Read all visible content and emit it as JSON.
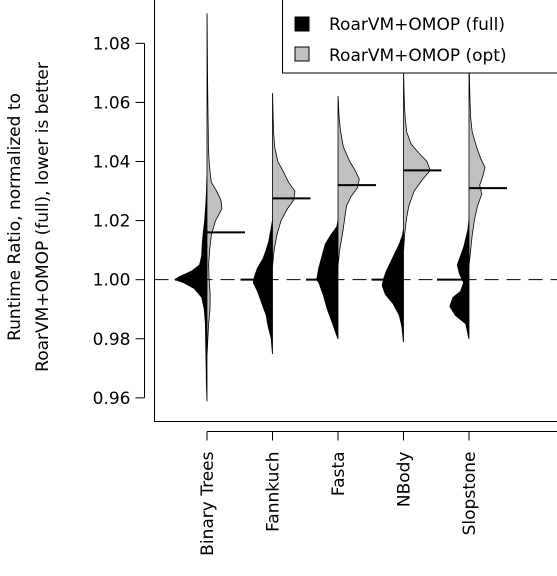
{
  "chart_data": {
    "type": "violin",
    "title": "",
    "ylabel_lines": [
      "Runtime Ratio, normalized to",
      "RoarVM+OMOP (full), lower is better"
    ],
    "xlabel": "",
    "ylim": [
      0.952,
      1.095
    ],
    "yticks": [
      0.96,
      0.98,
      1.0,
      1.02,
      1.04,
      1.06,
      1.08
    ],
    "ytick_labels": [
      "0.96",
      "0.98",
      "1.00",
      "1.02",
      "1.04",
      "1.06",
      "1.08"
    ],
    "reference_line": 1.0,
    "categories": [
      "Binary Trees",
      "Fannkuch",
      "Fasta",
      "NBody",
      "Slopstone"
    ],
    "series": [
      {
        "name": "RoarVM+OMOP (full)",
        "color": "#000000",
        "means": [
          1.0,
          1.0,
          1.0,
          1.0,
          1.0
        ],
        "densities": [
          [
            [
              0.959,
              0.1
            ],
            [
              0.965,
              0.6
            ],
            [
              0.972,
              0.9
            ],
            [
              0.978,
              1.2
            ],
            [
              0.985,
              1.5
            ],
            [
              0.99,
              2.6
            ],
            [
              0.994,
              5.0
            ],
            [
              0.997,
              12.0
            ],
            [
              0.999,
              22.0
            ],
            [
              1.0,
              30.0
            ],
            [
              1.001,
              26.0
            ],
            [
              1.003,
              14.0
            ],
            [
              1.005,
              7.0
            ],
            [
              1.008,
              5.0
            ],
            [
              1.012,
              4.5
            ],
            [
              1.016,
              3.5
            ],
            [
              1.02,
              2.2
            ],
            [
              1.025,
              1.2
            ],
            [
              1.03,
              0.5
            ],
            [
              1.035,
              0.1
            ]
          ],
          [
            [
              0.975,
              0.1
            ],
            [
              0.98,
              1.2
            ],
            [
              0.984,
              4.0
            ],
            [
              0.988,
              6.0
            ],
            [
              0.992,
              10.0
            ],
            [
              0.996,
              14.0
            ],
            [
              0.999,
              18.0
            ],
            [
              1.001,
              17.0
            ],
            [
              1.004,
              14.0
            ],
            [
              1.007,
              9.0
            ],
            [
              1.01,
              6.0
            ],
            [
              1.013,
              3.5
            ],
            [
              1.017,
              1.5
            ],
            [
              1.02,
              0.1
            ]
          ],
          [
            [
              0.98,
              0.1
            ],
            [
              0.985,
              5.0
            ],
            [
              0.99,
              10.0
            ],
            [
              0.995,
              14.0
            ],
            [
              0.999,
              18.0
            ],
            [
              1.0,
              20.0
            ],
            [
              1.004,
              18.0
            ],
            [
              1.008,
              15.0
            ],
            [
              1.012,
              12.0
            ],
            [
              1.015,
              7.0
            ],
            [
              1.018,
              1.0
            ],
            [
              1.02,
              0.1
            ]
          ],
          [
            [
              0.979,
              0.1
            ],
            [
              0.984,
              1.5
            ],
            [
              0.988,
              4.0
            ],
            [
              0.992,
              10.0
            ],
            [
              0.995,
              17.0
            ],
            [
              0.998,
              20.0
            ],
            [
              1.0,
              19.0
            ],
            [
              1.003,
              16.0
            ],
            [
              1.006,
              12.0
            ],
            [
              1.009,
              8.0
            ],
            [
              1.012,
              4.0
            ],
            [
              1.015,
              1.0
            ],
            [
              1.017,
              0.1
            ]
          ],
          [
            [
              0.98,
              0.1
            ],
            [
              0.985,
              3.0
            ],
            [
              0.988,
              13.0
            ],
            [
              0.991,
              18.0
            ],
            [
              0.994,
              15.0
            ],
            [
              0.996,
              8.0
            ],
            [
              0.999,
              5.0
            ],
            [
              1.002,
              9.0
            ],
            [
              1.005,
              11.0
            ],
            [
              1.008,
              8.0
            ],
            [
              1.011,
              5.0
            ],
            [
              1.014,
              3.0
            ],
            [
              1.017,
              1.0
            ],
            [
              1.02,
              0.1
            ]
          ]
        ]
      },
      {
        "name": "RoarVM+OMOP (opt)",
        "color": "#c0c0c0",
        "means": [
          1.016,
          1.0275,
          1.032,
          1.037,
          1.031
        ],
        "densities": [
          [
            [
              0.975,
              0.1
            ],
            [
              0.98,
              0.8
            ],
            [
              0.985,
              1.5
            ],
            [
              0.99,
              2.8
            ],
            [
              0.995,
              3.0
            ],
            [
              1.0,
              2.0
            ],
            [
              1.005,
              1.5
            ],
            [
              1.01,
              2.5
            ],
            [
              1.015,
              4.0
            ],
            [
              1.02,
              8.0
            ],
            [
              1.024,
              14.0
            ],
            [
              1.027,
              13.0
            ],
            [
              1.03,
              9.0
            ],
            [
              1.033,
              4.0
            ],
            [
              1.036,
              3.0
            ],
            [
              1.04,
              2.0
            ],
            [
              1.045,
              1.3
            ],
            [
              1.05,
              1.2
            ],
            [
              1.06,
              0.8
            ],
            [
              1.07,
              0.5
            ],
            [
              1.08,
              0.3
            ],
            [
              1.09,
              0.1
            ]
          ],
          [
            [
              1.005,
              0.1
            ],
            [
              1.01,
              1.5
            ],
            [
              1.015,
              4.0
            ],
            [
              1.02,
              8.0
            ],
            [
              1.024,
              14.0
            ],
            [
              1.027,
              20.0
            ],
            [
              1.03,
              21.0
            ],
            [
              1.033,
              15.0
            ],
            [
              1.036,
              11.0
            ],
            [
              1.04,
              5.0
            ],
            [
              1.045,
              2.0
            ],
            [
              1.05,
              1.0
            ],
            [
              1.055,
              0.6
            ],
            [
              1.063,
              0.1
            ]
          ],
          [
            [
              1.005,
              0.1
            ],
            [
              1.01,
              1.5
            ],
            [
              1.015,
              4.0
            ],
            [
              1.02,
              6.0
            ],
            [
              1.025,
              8.0
            ],
            [
              1.028,
              12.0
            ],
            [
              1.031,
              18.0
            ],
            [
              1.034,
              20.0
            ],
            [
              1.037,
              16.0
            ],
            [
              1.04,
              11.0
            ],
            [
              1.045,
              5.0
            ],
            [
              1.05,
              2.5
            ],
            [
              1.055,
              1.0
            ],
            [
              1.062,
              0.1
            ]
          ],
          [
            [
              1.01,
              0.1
            ],
            [
              1.015,
              1.0
            ],
            [
              1.02,
              2.5
            ],
            [
              1.025,
              5.0
            ],
            [
              1.03,
              10.0
            ],
            [
              1.034,
              18.0
            ],
            [
              1.037,
              25.0
            ],
            [
              1.04,
              22.0
            ],
            [
              1.043,
              14.0
            ],
            [
              1.046,
              7.0
            ],
            [
              1.05,
              3.0
            ],
            [
              1.055,
              1.5
            ],
            [
              1.06,
              0.8
            ],
            [
              1.065,
              0.4
            ],
            [
              1.07,
              0.1
            ]
          ],
          [
            [
              1.005,
              0.1
            ],
            [
              1.01,
              1.5
            ],
            [
              1.015,
              3.0
            ],
            [
              1.02,
              5.0
            ],
            [
              1.025,
              8.0
            ],
            [
              1.029,
              12.0
            ],
            [
              1.032,
              10.0
            ],
            [
              1.035,
              13.0
            ],
            [
              1.038,
              15.0
            ],
            [
              1.041,
              11.0
            ],
            [
              1.045,
              7.0
            ],
            [
              1.05,
              3.0
            ],
            [
              1.055,
              1.5
            ],
            [
              1.06,
              1.0
            ],
            [
              1.065,
              0.6
            ],
            [
              1.075,
              0.1
            ]
          ]
        ]
      }
    ],
    "legend": {
      "position": "top-right",
      "entries": [
        "RoarVM+OMOP (full)",
        "RoarVM+OMOP (opt)"
      ]
    }
  }
}
